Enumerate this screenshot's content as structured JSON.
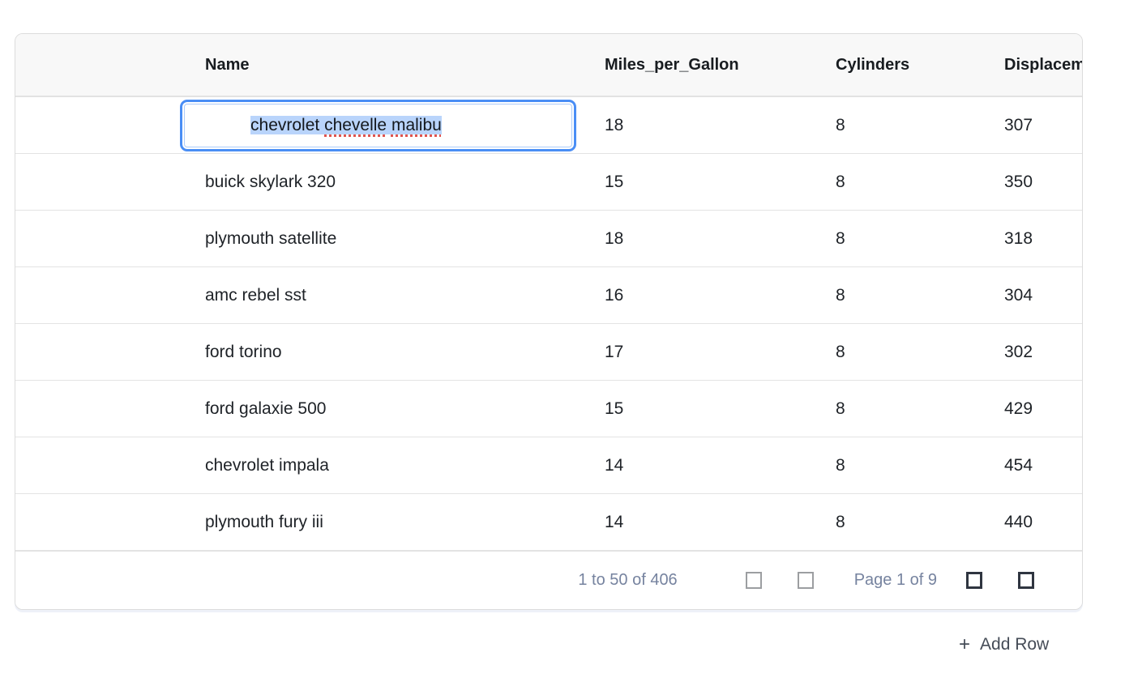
{
  "table": {
    "columns": [
      {
        "label": ""
      },
      {
        "label": "Name"
      },
      {
        "label": "Miles_per_Gallon"
      },
      {
        "label": "Cylinders"
      },
      {
        "label": "Displacement"
      }
    ],
    "rows": [
      {
        "name": "chevrolet chevelle malibu",
        "mpg": "18",
        "cylinders": "8",
        "displacement": "307"
      },
      {
        "name": "buick skylark 320",
        "mpg": "15",
        "cylinders": "8",
        "displacement": "350"
      },
      {
        "name": "plymouth satellite",
        "mpg": "18",
        "cylinders": "8",
        "displacement": "318"
      },
      {
        "name": "amc rebel sst",
        "mpg": "16",
        "cylinders": "8",
        "displacement": "304"
      },
      {
        "name": "ford torino",
        "mpg": "17",
        "cylinders": "8",
        "displacement": "302"
      },
      {
        "name": "ford galaxie 500",
        "mpg": "15",
        "cylinders": "8",
        "displacement": "429"
      },
      {
        "name": "chevrolet impala",
        "mpg": "14",
        "cylinders": "8",
        "displacement": "454"
      },
      {
        "name": "plymouth fury iii",
        "mpg": "14",
        "cylinders": "8",
        "displacement": "440"
      }
    ],
    "editor": {
      "value": "chevrolet chevelle malibu",
      "row_index": 0,
      "column": "Name",
      "selection_all": true,
      "segments": [
        {
          "text": "chevrolet ",
          "misspelled": false
        },
        {
          "text": "chevelle",
          "misspelled": true
        },
        {
          "text": " ",
          "misspelled": false
        },
        {
          "text": "malibu",
          "misspelled": true
        }
      ]
    },
    "footer": {
      "range_summary": "1 to 50 of 406",
      "page_status": "Page 1 of 9",
      "buttons": [
        {
          "icon": "first-page-icon",
          "enabled": false
        },
        {
          "icon": "previous-page-icon",
          "enabled": false
        },
        {
          "icon": "next-page-icon",
          "enabled": true
        },
        {
          "icon": "last-page-icon",
          "enabled": true
        }
      ]
    }
  },
  "add_row": {
    "plus": "+",
    "label": "Add Row"
  },
  "colors": {
    "accent_blue": "#4a8ef5",
    "selection_blue": "#b9d4fb",
    "spellcheck_red": "#e0544e",
    "header_bg": "#f8f8f8",
    "border_gray": "#e3e3e3",
    "footer_text": "#76839f",
    "disabled_icon": "#9c9ea1",
    "enabled_icon": "#2f3540"
  }
}
